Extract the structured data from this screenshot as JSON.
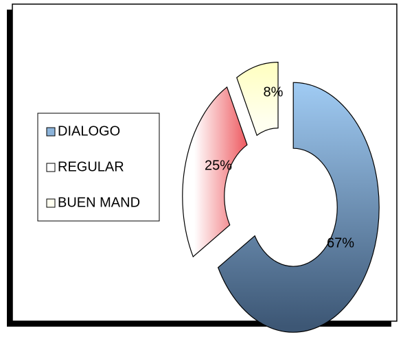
{
  "chart_data": {
    "type": "doughnut",
    "categories": [
      "DIALOGO",
      "REGULAR",
      "BUEN MAND"
    ],
    "values": [
      67,
      25,
      8
    ],
    "value_labels": [
      "67%",
      "25%",
      "8%"
    ],
    "colors": [
      "#3d5775",
      "#e8242c",
      "#ffffc4"
    ],
    "legend": "left"
  }
}
